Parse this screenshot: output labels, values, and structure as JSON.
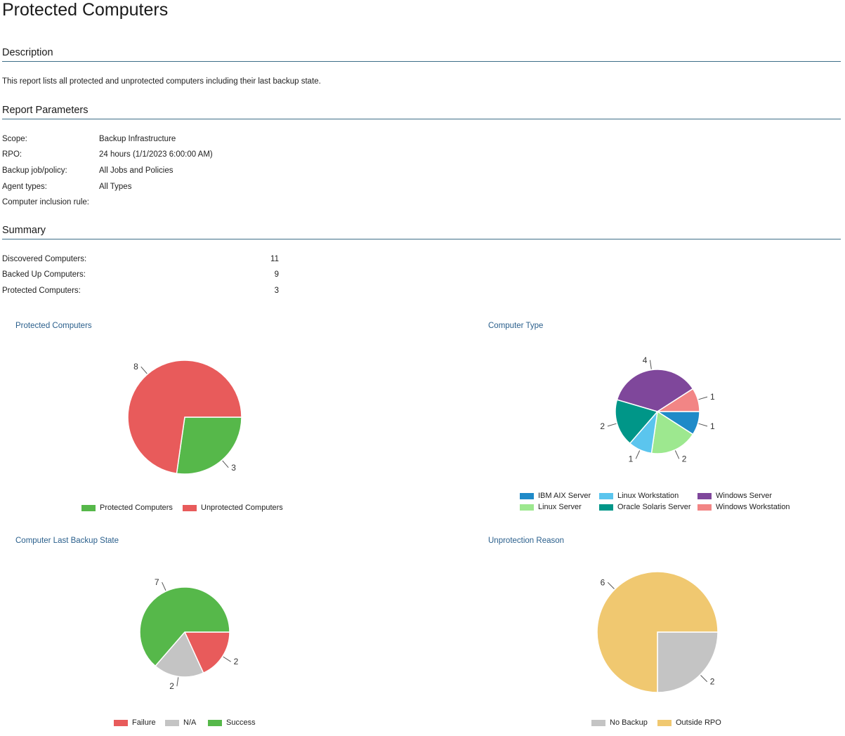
{
  "page_title": "Protected Computers",
  "description": {
    "heading": "Description",
    "text": "This report lists all protected and unprotected computers including their last backup state."
  },
  "parameters": {
    "heading": "Report Parameters",
    "rows": [
      {
        "label": "Scope:",
        "value": "Backup Infrastructure"
      },
      {
        "label": "RPO:",
        "value": "24 hours (1/1/2023 6:00:00 AM)"
      },
      {
        "label": "Backup job/policy:",
        "value": "All Jobs and Policies"
      },
      {
        "label": "Agent types:",
        "value": "All Types"
      },
      {
        "label": "Computer inclusion rule:",
        "value": ""
      }
    ]
  },
  "summary": {
    "heading": "Summary",
    "rows": [
      {
        "label": "Discovered Computers:",
        "value": "11"
      },
      {
        "label": "Backed Up Computers:",
        "value": "9"
      },
      {
        "label": "Protected Computers:",
        "value": "3"
      }
    ]
  },
  "chart_data": [
    {
      "type": "pie",
      "title": "Protected Computers",
      "series": [
        {
          "name": "Protected Computers",
          "value": 3,
          "color": "#56b84a"
        },
        {
          "name": "Unprotected Computers",
          "value": 8,
          "color": "#e85b5b"
        }
      ]
    },
    {
      "type": "pie",
      "title": "Computer Type",
      "series": [
        {
          "name": "IBM AIX Server",
          "value": 1,
          "color": "#1f8ac8"
        },
        {
          "name": "Linux Server",
          "value": 2,
          "color": "#9de88f"
        },
        {
          "name": "Linux Workstation",
          "value": 1,
          "color": "#5bc5ee"
        },
        {
          "name": "Oracle Solaris Server",
          "value": 2,
          "color": "#009688"
        },
        {
          "name": "Windows Server",
          "value": 4,
          "color": "#7f479b"
        },
        {
          "name": "Windows Workstation",
          "value": 1,
          "color": "#f28585"
        }
      ]
    },
    {
      "type": "pie",
      "title": "Computer Last Backup State",
      "series": [
        {
          "name": "Failure",
          "value": 2,
          "color": "#e85b5b"
        },
        {
          "name": "N/A",
          "value": 2,
          "color": "#c4c4c4"
        },
        {
          "name": "Success",
          "value": 7,
          "color": "#56b84a"
        }
      ]
    },
    {
      "type": "pie",
      "title": "Unprotection Reason",
      "series": [
        {
          "name": "No Backup",
          "value": 2,
          "color": "#c4c4c4"
        },
        {
          "name": "Outside RPO",
          "value": 6,
          "color": "#f0c870"
        }
      ]
    }
  ]
}
